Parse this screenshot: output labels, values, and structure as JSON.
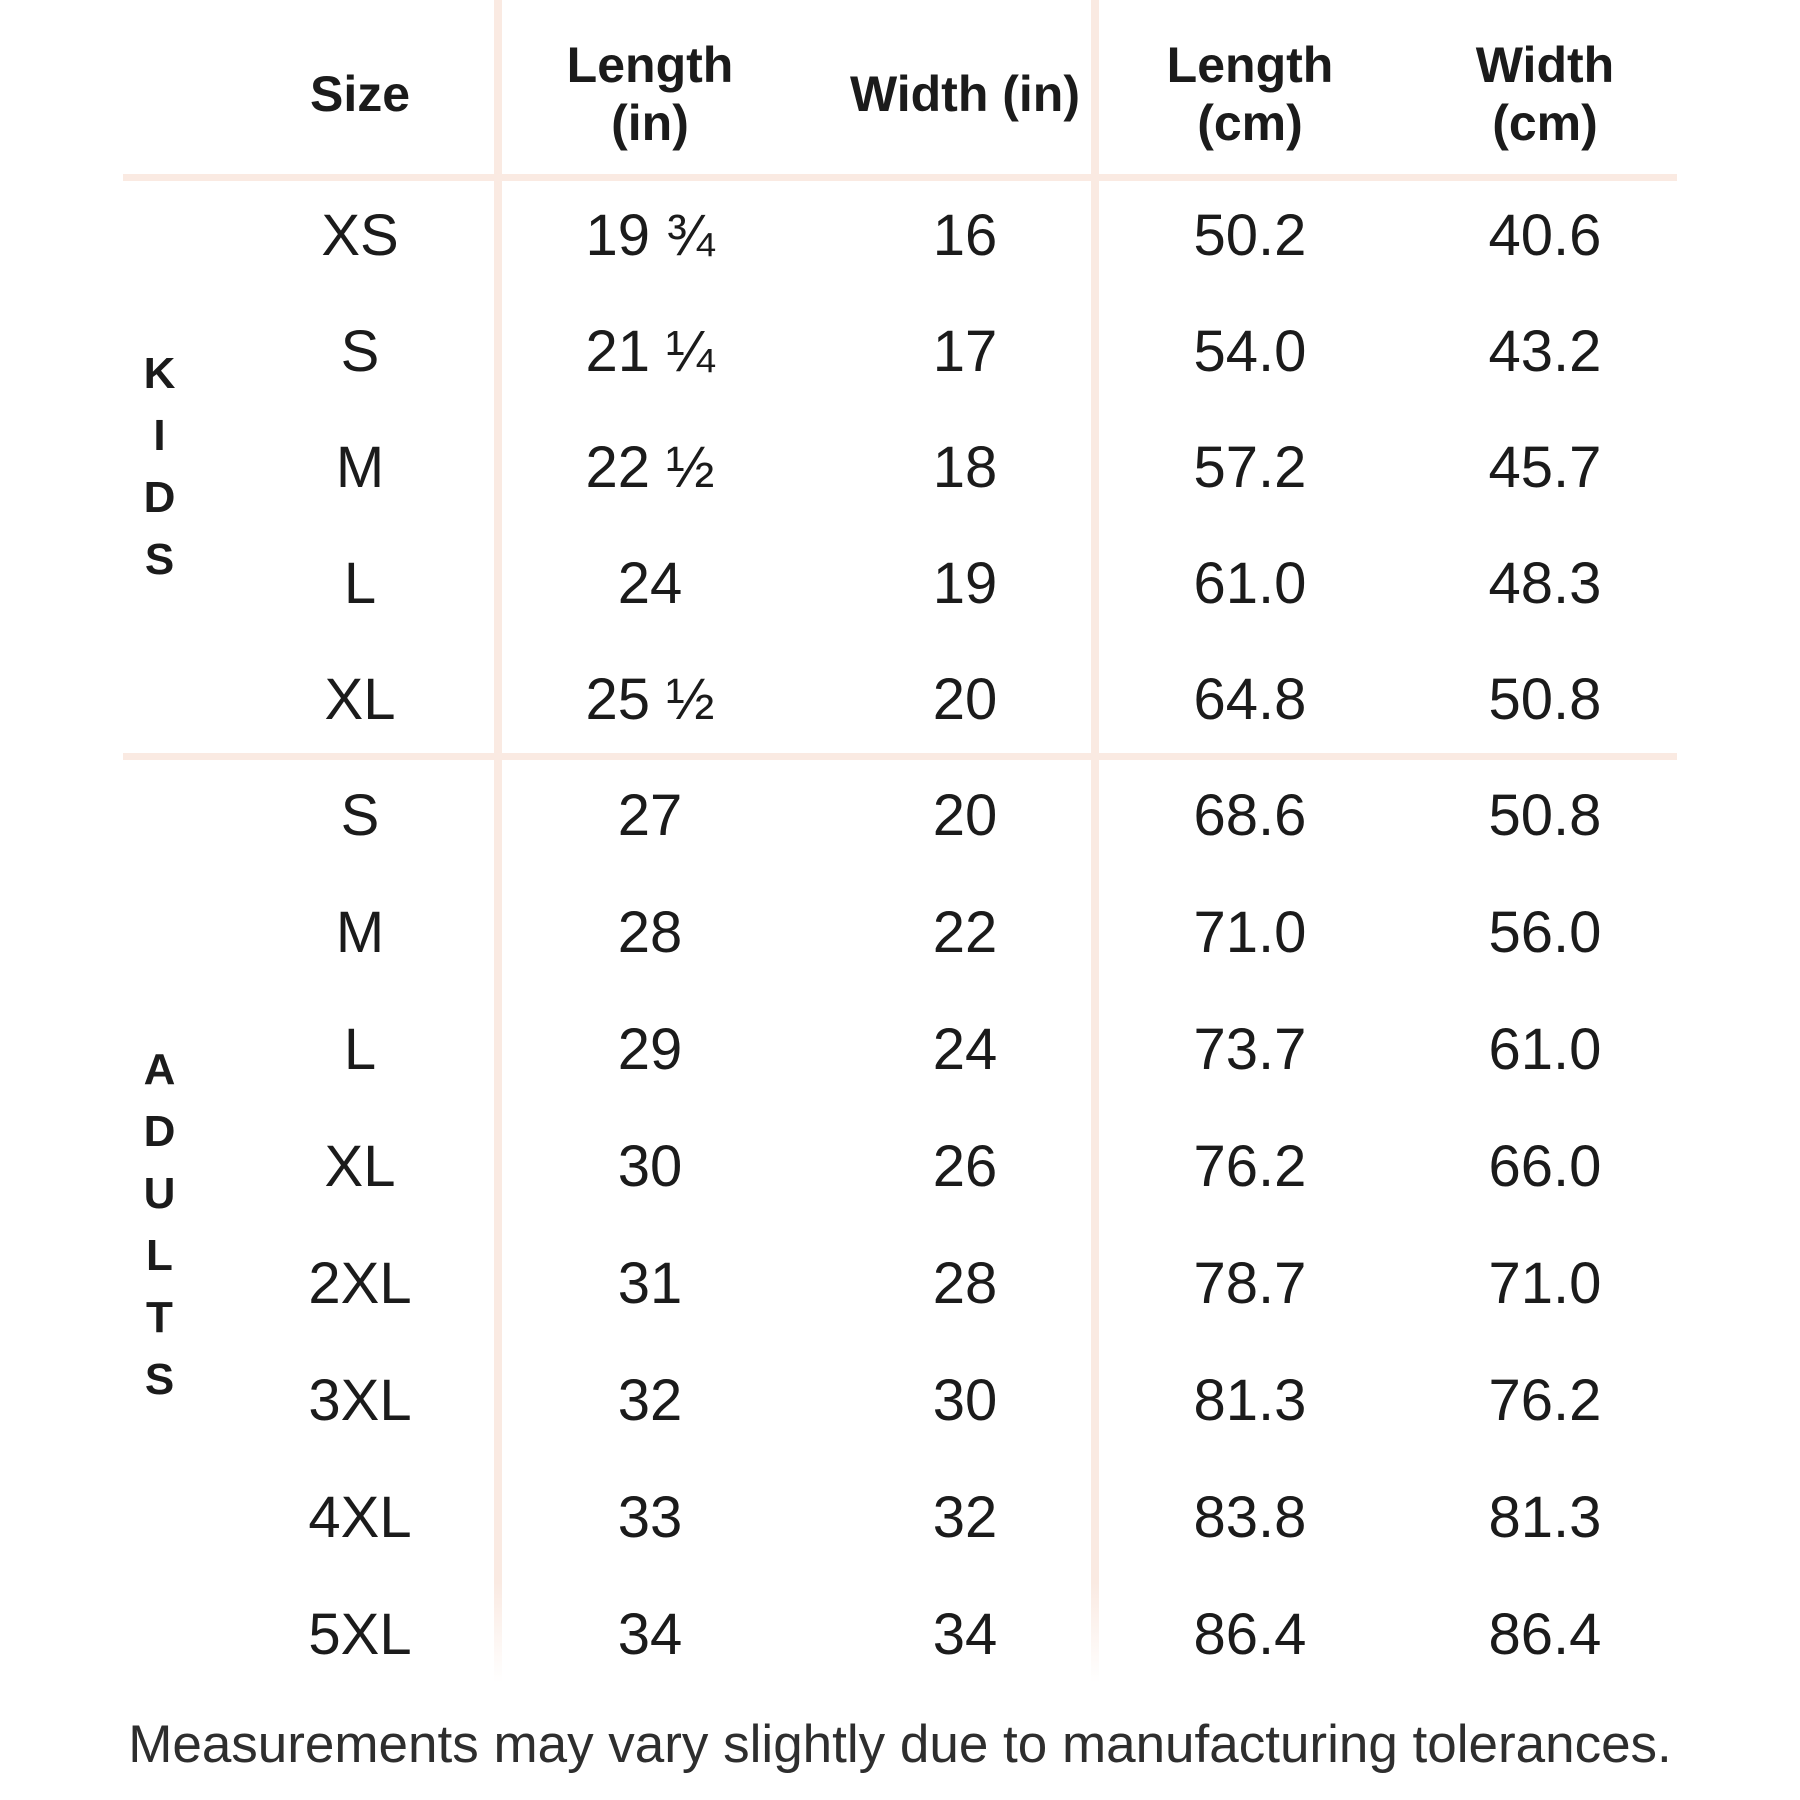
{
  "colors": {
    "divider": "#faeae2",
    "text": "#1b1b1b",
    "footer_text": "#2e2e2e",
    "background": "#ffffff"
  },
  "table": {
    "headers": {
      "size": "Size",
      "length_in": [
        "Length",
        "(in)"
      ],
      "width_in": [
        "Width (in)"
      ],
      "length_cm": [
        "Length",
        "(cm)"
      ],
      "width_cm": [
        "Width",
        "(cm)"
      ]
    },
    "sections": [
      {
        "group": "KIDS",
        "rows": [
          {
            "size": "XS",
            "length_in": "19 ¾",
            "width_in": "16",
            "length_cm": "50.2",
            "width_cm": "40.6"
          },
          {
            "size": "S",
            "length_in": "21 ¼",
            "width_in": "17",
            "length_cm": "54.0",
            "width_cm": "43.2"
          },
          {
            "size": "M",
            "length_in": "22 ½",
            "width_in": "18",
            "length_cm": "57.2",
            "width_cm": "45.7"
          },
          {
            "size": "L",
            "length_in": "24",
            "width_in": "19",
            "length_cm": "61.0",
            "width_cm": "48.3"
          },
          {
            "size": "XL",
            "length_in": "25 ½",
            "width_in": "20",
            "length_cm": "64.8",
            "width_cm": "50.8"
          }
        ]
      },
      {
        "group": "ADULTS",
        "rows": [
          {
            "size": "S",
            "length_in": "27",
            "width_in": "20",
            "length_cm": "68.6",
            "width_cm": "50.8"
          },
          {
            "size": "M",
            "length_in": "28",
            "width_in": "22",
            "length_cm": "71.0",
            "width_cm": "56.0"
          },
          {
            "size": "L",
            "length_in": "29",
            "width_in": "24",
            "length_cm": "73.7",
            "width_cm": "61.0"
          },
          {
            "size": "XL",
            "length_in": "30",
            "width_in": "26",
            "length_cm": "76.2",
            "width_cm": "66.0"
          },
          {
            "size": "2XL",
            "length_in": "31",
            "width_in": "28",
            "length_cm": "78.7",
            "width_cm": "71.0"
          },
          {
            "size": "3XL",
            "length_in": "32",
            "width_in": "30",
            "length_cm": "81.3",
            "width_cm": "76.2"
          },
          {
            "size": "4XL",
            "length_in": "33",
            "width_in": "32",
            "length_cm": "83.8",
            "width_cm": "81.3"
          },
          {
            "size": "5XL",
            "length_in": "34",
            "width_in": "34",
            "length_cm": "86.4",
            "width_cm": "86.4"
          }
        ]
      }
    ]
  },
  "footer": {
    "note": "Measurements may vary slightly due to manufacturing tolerances."
  }
}
